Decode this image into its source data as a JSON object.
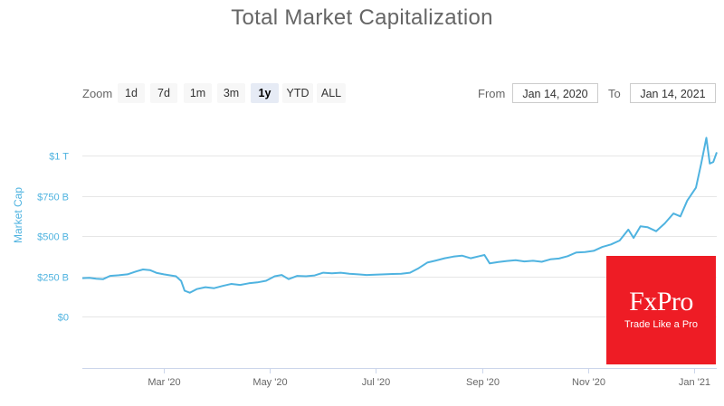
{
  "title": "Total Market Capitalization",
  "zoom": {
    "label": "Zoom",
    "buttons": [
      {
        "label": "1d",
        "active": false
      },
      {
        "label": "7d",
        "active": false
      },
      {
        "label": "1m",
        "active": false
      },
      {
        "label": "3m",
        "active": false
      },
      {
        "label": "1y",
        "active": true
      },
      {
        "label": "YTD",
        "active": false
      },
      {
        "label": "ALL",
        "active": false
      }
    ]
  },
  "range": {
    "from_label": "From",
    "from_value": "Jan 14, 2020",
    "to_label": "To",
    "to_value": "Jan 14, 2021"
  },
  "logo": {
    "main": "FxPro",
    "sub": "Trade Like a Pro"
  },
  "colors": {
    "series": "#4fb3e0",
    "axis_label": "#4fb3e0",
    "grid": "#e6e6e6",
    "logo_bg": "#ee1c25"
  },
  "chart_data": {
    "type": "line",
    "title": "Total Market Capitalization",
    "ylabel": "Market Cap",
    "xlabel": "",
    "ylim": [
      0,
      1000
    ],
    "yticks": [
      {
        "value": 0,
        "label": "$0"
      },
      {
        "value": 250,
        "label": "$250 B"
      },
      {
        "value": 500,
        "label": "$500 B"
      },
      {
        "value": 750,
        "label": "$750 B"
      },
      {
        "value": 1000,
        "label": "$1 T"
      }
    ],
    "xrange": [
      "2020-01-14",
      "2021-01-14"
    ],
    "xticks": [
      {
        "date": "2020-03-01",
        "label": "Mar '20"
      },
      {
        "date": "2020-05-01",
        "label": "May '20"
      },
      {
        "date": "2020-07-01",
        "label": "Jul '20"
      },
      {
        "date": "2020-09-01",
        "label": "Sep '20"
      },
      {
        "date": "2020-11-01",
        "label": "Nov '20"
      },
      {
        "date": "2021-01-01",
        "label": "Jan '21"
      }
    ],
    "series": [
      {
        "color": "#4fb3e0",
        "points": [
          [
            "2020-01-14",
            238
          ],
          [
            "2020-01-18",
            240
          ],
          [
            "2020-01-22",
            235
          ],
          [
            "2020-01-26",
            232
          ],
          [
            "2020-01-30",
            252
          ],
          [
            "2020-02-04",
            256
          ],
          [
            "2020-02-09",
            262
          ],
          [
            "2020-02-14",
            280
          ],
          [
            "2020-02-18",
            292
          ],
          [
            "2020-02-22",
            288
          ],
          [
            "2020-02-26",
            270
          ],
          [
            "2020-03-01",
            262
          ],
          [
            "2020-03-05",
            255
          ],
          [
            "2020-03-08",
            250
          ],
          [
            "2020-03-11",
            220
          ],
          [
            "2020-03-13",
            160
          ],
          [
            "2020-03-16",
            148
          ],
          [
            "2020-03-20",
            170
          ],
          [
            "2020-03-25",
            182
          ],
          [
            "2020-03-30",
            176
          ],
          [
            "2020-04-04",
            190
          ],
          [
            "2020-04-09",
            202
          ],
          [
            "2020-04-14",
            196
          ],
          [
            "2020-04-19",
            206
          ],
          [
            "2020-04-24",
            212
          ],
          [
            "2020-04-29",
            222
          ],
          [
            "2020-05-04",
            250
          ],
          [
            "2020-05-08",
            258
          ],
          [
            "2020-05-12",
            232
          ],
          [
            "2020-05-17",
            252
          ],
          [
            "2020-05-22",
            250
          ],
          [
            "2020-05-27",
            255
          ],
          [
            "2020-06-01",
            272
          ],
          [
            "2020-06-06",
            268
          ],
          [
            "2020-06-11",
            272
          ],
          [
            "2020-06-16",
            265
          ],
          [
            "2020-06-21",
            262
          ],
          [
            "2020-06-26",
            258
          ],
          [
            "2020-07-01",
            260
          ],
          [
            "2020-07-06",
            262
          ],
          [
            "2020-07-11",
            264
          ],
          [
            "2020-07-16",
            266
          ],
          [
            "2020-07-21",
            272
          ],
          [
            "2020-07-26",
            300
          ],
          [
            "2020-07-31",
            335
          ],
          [
            "2020-08-05",
            348
          ],
          [
            "2020-08-10",
            362
          ],
          [
            "2020-08-15",
            372
          ],
          [
            "2020-08-20",
            378
          ],
          [
            "2020-08-25",
            362
          ],
          [
            "2020-08-30",
            375
          ],
          [
            "2020-09-02",
            382
          ],
          [
            "2020-09-05",
            330
          ],
          [
            "2020-09-10",
            338
          ],
          [
            "2020-09-15",
            345
          ],
          [
            "2020-09-20",
            350
          ],
          [
            "2020-09-25",
            342
          ],
          [
            "2020-09-30",
            346
          ],
          [
            "2020-10-05",
            340
          ],
          [
            "2020-10-10",
            355
          ],
          [
            "2020-10-15",
            360
          ],
          [
            "2020-10-20",
            375
          ],
          [
            "2020-10-25",
            398
          ],
          [
            "2020-10-30",
            400
          ],
          [
            "2020-11-04",
            408
          ],
          [
            "2020-11-09",
            432
          ],
          [
            "2020-11-14",
            448
          ],
          [
            "2020-11-19",
            472
          ],
          [
            "2020-11-24",
            540
          ],
          [
            "2020-11-27",
            488
          ],
          [
            "2020-12-01",
            560
          ],
          [
            "2020-12-05",
            555
          ],
          [
            "2020-12-10",
            530
          ],
          [
            "2020-12-15",
            578
          ],
          [
            "2020-12-20",
            640
          ],
          [
            "2020-12-24",
            622
          ],
          [
            "2020-12-28",
            720
          ],
          [
            "2021-01-02",
            800
          ],
          [
            "2021-01-05",
            950
          ],
          [
            "2021-01-08",
            1110
          ],
          [
            "2021-01-10",
            950
          ],
          [
            "2021-01-12",
            960
          ],
          [
            "2021-01-14",
            1020
          ]
        ]
      }
    ]
  }
}
